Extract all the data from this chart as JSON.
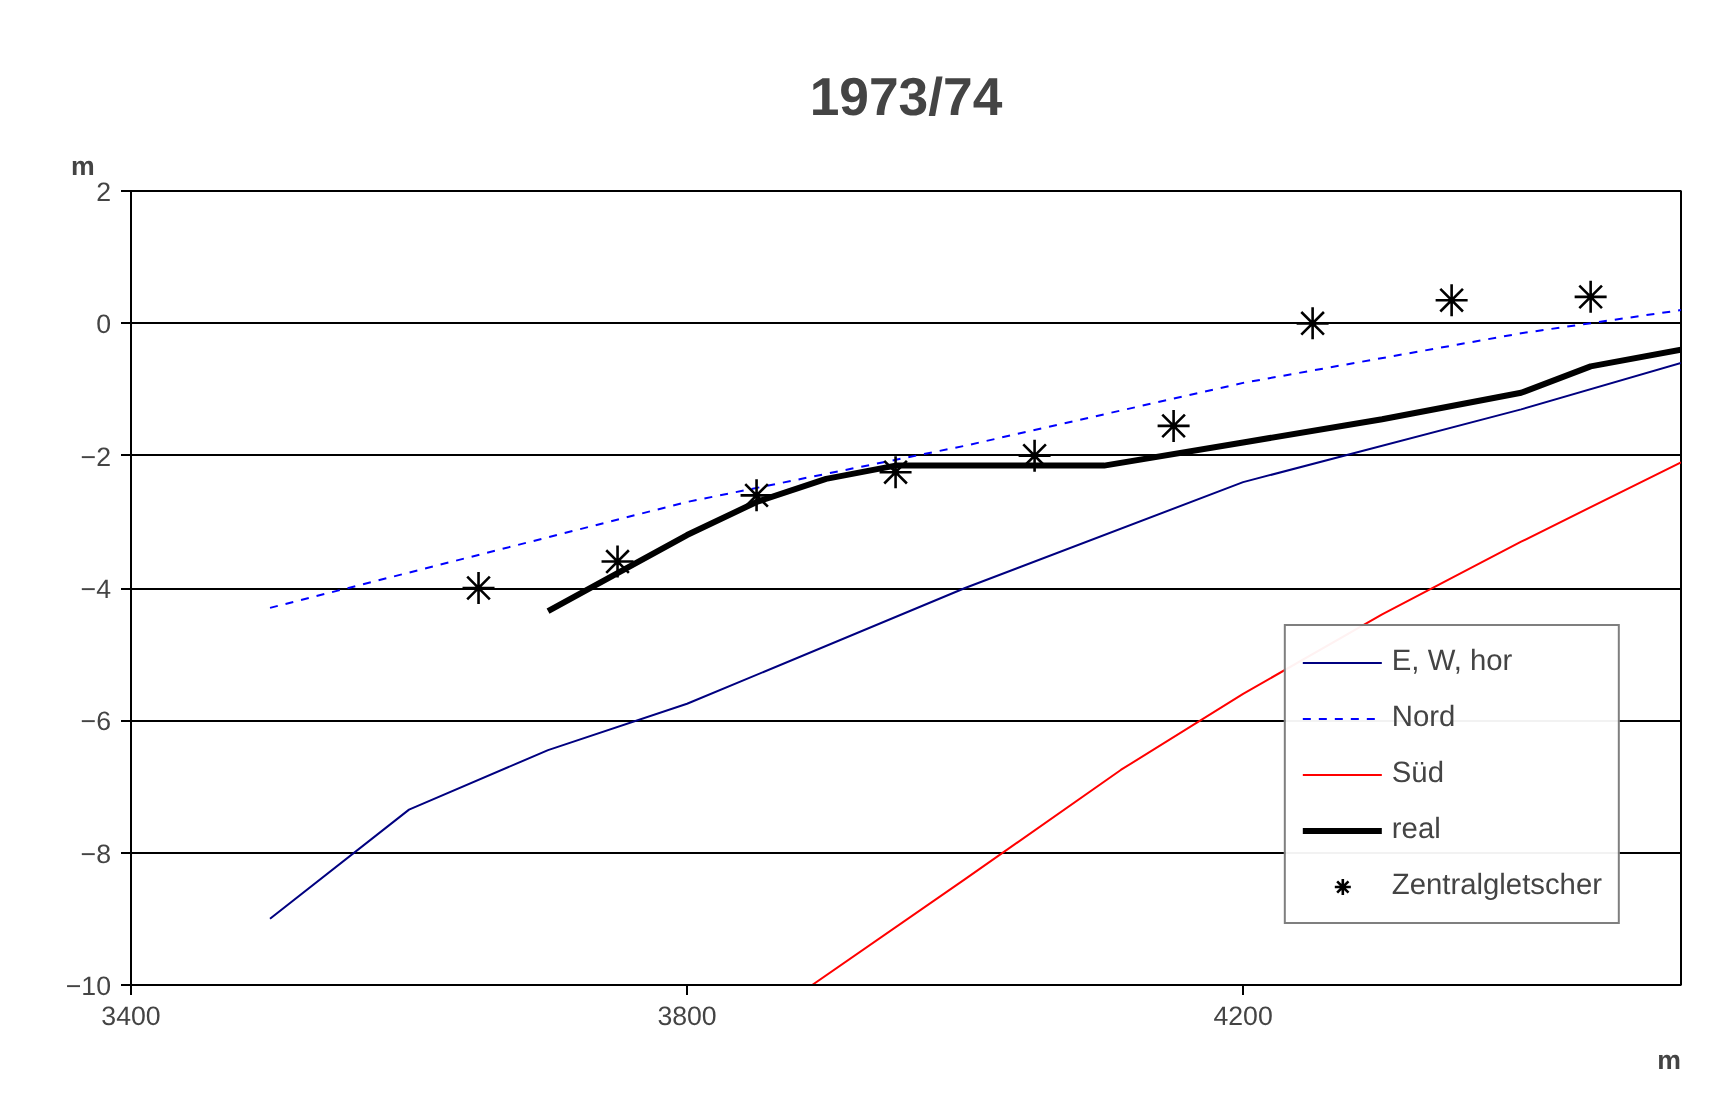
{
  "chart_data": {
    "type": "line",
    "title": "1973/74",
    "xlabel": "m",
    "ylabel": "m",
    "xlim": [
      3400,
      4515
    ],
    "xticks": [
      3400,
      3800,
      4200
    ],
    "ylim": [
      -10,
      2
    ],
    "yticks": [
      -10,
      -8,
      -6,
      -4,
      -2,
      0,
      2
    ],
    "grid": "y",
    "legend": "bottom right",
    "series": [
      {
        "name": "E, W, hor",
        "color": "#000080",
        "line_style": "solid",
        "x": [
          3500,
          3600,
          3700,
          3800,
          4000,
          4200,
          4400,
          4515
        ],
        "values": [
          -9.0,
          -7.35,
          -6.45,
          -5.75,
          -4.0,
          -2.4,
          -1.3,
          -0.6
        ]
      },
      {
        "name": "Nord",
        "color": "#0000ff",
        "line_style": "dashed",
        "x": [
          3500,
          3800,
          4000,
          4200,
          4400,
          4515
        ],
        "values": [
          -4.3,
          -2.7,
          -1.85,
          -0.9,
          -0.15,
          0.2
        ]
      },
      {
        "name": "Süd",
        "color": "#ff0000",
        "line_style": "solid",
        "x": [
          3890,
          4000,
          4112,
          4200,
          4300,
          4400,
          4515
        ],
        "values": [
          -10,
          -8.4,
          -6.75,
          -5.6,
          -4.4,
          -3.3,
          -2.1
        ]
      },
      {
        "name": "real",
        "color": "#000000",
        "line_style": "solid",
        "x": [
          3700,
          3800,
          3850,
          3900,
          3950,
          4100,
          4200,
          4300,
          4400,
          4450,
          4515
        ],
        "values": [
          -4.35,
          -3.2,
          -2.7,
          -2.35,
          -2.15,
          -2.15,
          -1.8,
          -1.45,
          -1.05,
          -0.65,
          -0.4
        ]
      },
      {
        "name": "Zentralgletscher",
        "type": "scatter",
        "marker": "cross",
        "color": "#000000",
        "x": [
          3650,
          3750,
          3850,
          3950,
          4050,
          4150,
          4250,
          4350,
          4450
        ],
        "values": [
          -4.0,
          -3.6,
          -2.6,
          -2.25,
          -2.0,
          -1.55,
          0.0,
          0.35,
          0.4
        ]
      }
    ]
  }
}
